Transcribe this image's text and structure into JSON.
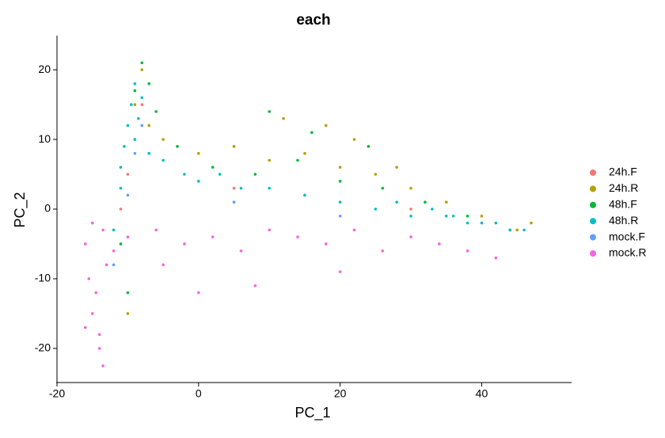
{
  "chart_data": {
    "type": "scatter",
    "title": "each",
    "x_label": "PC_1",
    "y_label": "PC_2",
    "xlim": [
      -20,
      52.7
    ],
    "ylim": [
      -24.9,
      24.9
    ],
    "xticks": [
      -20,
      0,
      20,
      40
    ],
    "yticks": [
      -20,
      -10,
      0,
      10,
      20
    ],
    "series": [
      {
        "name": "24h.F",
        "color": "#F8766D",
        "x": [
          -9,
          -10,
          -8,
          -11,
          -7,
          5,
          15,
          30
        ],
        "y": [
          10,
          5,
          15,
          0,
          8,
          3,
          2,
          0
        ]
      },
      {
        "name": "24h.R",
        "color": "#B79F00",
        "x": [
          -8,
          -9,
          -7,
          -5,
          0,
          5,
          10,
          15,
          20,
          25,
          30,
          35,
          40,
          45,
          18,
          22,
          12,
          -10,
          28,
          47
        ],
        "y": [
          20,
          15,
          12,
          10,
          8,
          9,
          7,
          8,
          6,
          5,
          3,
          1,
          -1,
          -3,
          12,
          10,
          13,
          -15,
          6,
          -2
        ]
      },
      {
        "name": "48h.F",
        "color": "#00BA38",
        "x": [
          -8,
          -9,
          -6,
          -3,
          2,
          8,
          14,
          20,
          26,
          32,
          38,
          44,
          -10,
          -11,
          16,
          10,
          -7,
          24
        ],
        "y": [
          21,
          17,
          14,
          9,
          6,
          5,
          7,
          4,
          3,
          1,
          -1,
          -3,
          -12,
          -5,
          11,
          14,
          18,
          9
        ]
      },
      {
        "name": "48h.R",
        "color": "#00BFC4",
        "x": [
          -9,
          -9.5,
          -10,
          -10.5,
          -11,
          -11,
          -12,
          -8,
          -8.5,
          -9,
          -7,
          -5,
          -2,
          0,
          3,
          6,
          10,
          15,
          20,
          25,
          30,
          35,
          38,
          40,
          42,
          44,
          46,
          33,
          28,
          36
        ],
        "y": [
          18,
          15,
          12,
          9,
          6,
          3,
          -3,
          16,
          13,
          10,
          8,
          7,
          5,
          4,
          5,
          3,
          3,
          2,
          1,
          0,
          -1,
          -1,
          -2,
          -2,
          -2,
          -3,
          -3,
          0,
          1,
          -1
        ]
      },
      {
        "name": "mock.F",
        "color": "#619CFF",
        "x": [
          -9,
          -10,
          -8,
          -12,
          5,
          20
        ],
        "y": [
          8,
          2,
          12,
          -8,
          1,
          -1
        ]
      },
      {
        "name": "mock.R",
        "color": "#F564E3",
        "x": [
          -15,
          -15.5,
          -16,
          -14,
          -14.5,
          -13,
          -15,
          -14,
          -13.5,
          -12,
          -10,
          -6,
          -2,
          2,
          6,
          10,
          14,
          18,
          22,
          26,
          30,
          34,
          38,
          42,
          -13.5,
          -16,
          8,
          20,
          0,
          -5
        ],
        "y": [
          -15,
          -10,
          -5,
          -18,
          -12,
          -8,
          -2,
          -20,
          -3,
          -6,
          -4,
          -3,
          -5,
          -4,
          -6,
          -3,
          -4,
          -5,
          -3,
          -6,
          -4,
          -5,
          -6,
          -7,
          -22.5,
          -17,
          -11,
          -9,
          -12,
          -8
        ]
      }
    ]
  }
}
